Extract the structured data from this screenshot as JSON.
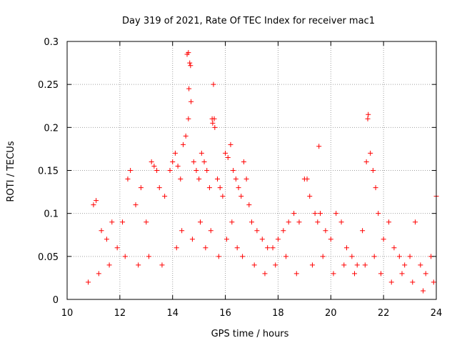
{
  "chart_data": {
    "type": "scatter",
    "title": "Day 319 of 2021, Rate Of TEC Index for receiver mac1",
    "xlabel": "GPS time / hours",
    "ylabel": "ROTI / TECUs",
    "xlim": [
      10,
      24
    ],
    "ylim": [
      0,
      0.3
    ],
    "x_ticks": [
      10,
      12,
      14,
      16,
      18,
      20,
      22,
      24
    ],
    "y_ticks": [
      0,
      0.05,
      0.1,
      0.15,
      0.2,
      0.25,
      0.3
    ],
    "x_tick_labels": [
      "10",
      "12",
      "14",
      "16",
      "18",
      "20",
      "22",
      "24"
    ],
    "y_tick_labels": [
      "0",
      "0.05",
      "0.1",
      "0.15",
      "0.2",
      "0.25",
      "0.3"
    ],
    "grid": true,
    "legend": "none",
    "marker": "plus",
    "series": [
      {
        "color": "#ff0000",
        "x": [
          10.8,
          11.0,
          11.1,
          11.3,
          11.5,
          11.7,
          11.9,
          12.1,
          12.3,
          12.4,
          12.6,
          12.8,
          13.0,
          13.2,
          13.3,
          13.4,
          13.5,
          13.7,
          13.9,
          14.0,
          14.1,
          14.2,
          14.3,
          14.4,
          14.5,
          14.6,
          14.62,
          14.65,
          14.7,
          14.8,
          14.9,
          15.0,
          15.1,
          15.2,
          15.3,
          15.4,
          15.5,
          15.55,
          15.6,
          15.7,
          15.8,
          15.9,
          16.0,
          16.1,
          16.2,
          16.3,
          16.4,
          16.5,
          16.6,
          16.7,
          16.8,
          16.9,
          17.0,
          17.2,
          17.4,
          17.6,
          17.8,
          18.0,
          18.2,
          18.4,
          18.6,
          18.8,
          19.0,
          19.1,
          19.2,
          19.4,
          19.5,
          19.6,
          19.8,
          20.0,
          20.2,
          20.4,
          20.6,
          20.8,
          21.0,
          21.2,
          21.35,
          21.4,
          21.5,
          21.6,
          21.7,
          21.8,
          22.0,
          22.2,
          22.4,
          22.6,
          22.8,
          23.0,
          23.2,
          23.4,
          23.6,
          23.8,
          24.0,
          11.2,
          11.6,
          12.2,
          12.7,
          13.1,
          13.6,
          14.15,
          14.35,
          14.75,
          15.05,
          15.25,
          15.45,
          15.75,
          16.05,
          16.25,
          16.45,
          16.65,
          17.1,
          17.5,
          17.9,
          18.3,
          18.7,
          19.3,
          19.7,
          20.1,
          20.5,
          20.9,
          21.3,
          21.65,
          21.9,
          22.3,
          22.7,
          23.1,
          23.5,
          23.9,
          14.55,
          14.6,
          14.68,
          15.52,
          15.58,
          19.55,
          21.42
        ],
        "y": [
          0.02,
          0.11,
          0.115,
          0.08,
          0.07,
          0.09,
          0.06,
          0.09,
          0.14,
          0.15,
          0.11,
          0.13,
          0.09,
          0.16,
          0.155,
          0.15,
          0.13,
          0.12,
          0.15,
          0.16,
          0.17,
          0.155,
          0.14,
          0.18,
          0.19,
          0.21,
          0.245,
          0.275,
          0.23,
          0.16,
          0.15,
          0.14,
          0.17,
          0.16,
          0.15,
          0.13,
          0.21,
          0.25,
          0.2,
          0.14,
          0.13,
          0.12,
          0.17,
          0.165,
          0.18,
          0.15,
          0.14,
          0.13,
          0.12,
          0.16,
          0.14,
          0.11,
          0.09,
          0.08,
          0.07,
          0.06,
          0.06,
          0.07,
          0.08,
          0.09,
          0.1,
          0.09,
          0.14,
          0.14,
          0.12,
          0.1,
          0.09,
          0.1,
          0.08,
          0.07,
          0.1,
          0.09,
          0.06,
          0.05,
          0.04,
          0.08,
          0.16,
          0.21,
          0.17,
          0.15,
          0.13,
          0.1,
          0.07,
          0.09,
          0.06,
          0.05,
          0.04,
          0.05,
          0.09,
          0.04,
          0.03,
          0.05,
          0.12,
          0.03,
          0.04,
          0.05,
          0.04,
          0.05,
          0.04,
          0.06,
          0.08,
          0.07,
          0.09,
          0.06,
          0.08,
          0.05,
          0.07,
          0.09,
          0.06,
          0.05,
          0.04,
          0.03,
          0.04,
          0.05,
          0.03,
          0.04,
          0.05,
          0.03,
          0.04,
          0.03,
          0.04,
          0.05,
          0.03,
          0.02,
          0.03,
          0.02,
          0.01,
          0.02,
          0.285,
          0.287,
          0.272,
          0.205,
          0.21,
          0.178,
          0.215
        ]
      }
    ]
  }
}
